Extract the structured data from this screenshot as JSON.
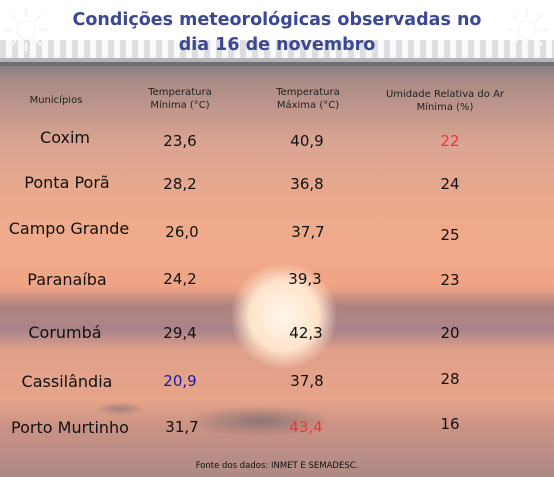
{
  "title": "Condições meteorológicas observadas no dia 16 de novembro",
  "headers": {
    "municipio": "Municípios",
    "tmin": "Temperatura Mínima (°C)",
    "tmax": "Temperatura Máxima (°C)",
    "umidade": "Umidade Relativa do Ar Mínima (%)"
  },
  "rows": [
    {
      "municipio": "Coxim",
      "tmin": "23,6",
      "tmax": "40,9",
      "umidade": "22"
    },
    {
      "municipio": "Ponta Porã",
      "tmin": "28,2",
      "tmax": "36,8",
      "umidade": "24"
    },
    {
      "municipio": "Campo Grande",
      "tmin": "26,0",
      "tmax": "37,7",
      "umidade": "25"
    },
    {
      "municipio": "Paranaíba",
      "tmin": "24,2",
      "tmax": "39,3",
      "umidade": "23"
    },
    {
      "municipio": "Corumbá",
      "tmin": "29,4",
      "tmax": "42,3",
      "umidade": "20"
    },
    {
      "municipio": "Cassilândia",
      "tmin": "20,9",
      "tmax": "37,8",
      "umidade": "28"
    },
    {
      "municipio": "Porto Murtinho",
      "tmin": "31,7",
      "tmax": "43,4",
      "umidade": "16"
    }
  ],
  "highlights": {
    "lowest_humidity_color": "#e53935",
    "lowest_tmin_color": "#1a1aa8",
    "highest_tmax_color": "#e53935",
    "title_color": "#3d4893"
  },
  "icons": [
    "sun-icon",
    "sun-icon"
  ],
  "footer": "Fonte dos dados: INMET E SEMADESC."
}
